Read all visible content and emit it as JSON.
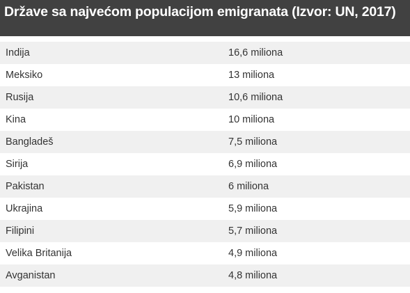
{
  "chart_data": {
    "type": "table",
    "title": "Države sa najvećom populacijom emigranata (Izvor: UN, 2017)",
    "columns": [
      "",
      ""
    ],
    "rows": [
      {
        "country": "Indija",
        "value": "16,6 miliona"
      },
      {
        "country": "Meksiko",
        "value": "13 miliona"
      },
      {
        "country": "Rusija",
        "value": "10,6 miliona"
      },
      {
        "country": "Kina",
        "value": "10 miliona"
      },
      {
        "country": "Bangladeš",
        "value": "7,5 miliona"
      },
      {
        "country": "Sirija",
        "value": "6,9 miliona"
      },
      {
        "country": "Pakistan",
        "value": "6 miliona"
      },
      {
        "country": "Ukrajina",
        "value": "5,9 miliona"
      },
      {
        "country": "Filipini",
        "value": "5,7 miliona"
      },
      {
        "country": "Velika Britanija",
        "value": "4,9 miliona"
      },
      {
        "country": "Avganistan",
        "value": "4,8 miliona"
      }
    ]
  },
  "colors": {
    "header_bg": "#414141",
    "header_text": "#ffffff",
    "row_odd_bg": "#f0f0f0",
    "row_even_bg": "#ffffff",
    "text": "#333333"
  }
}
